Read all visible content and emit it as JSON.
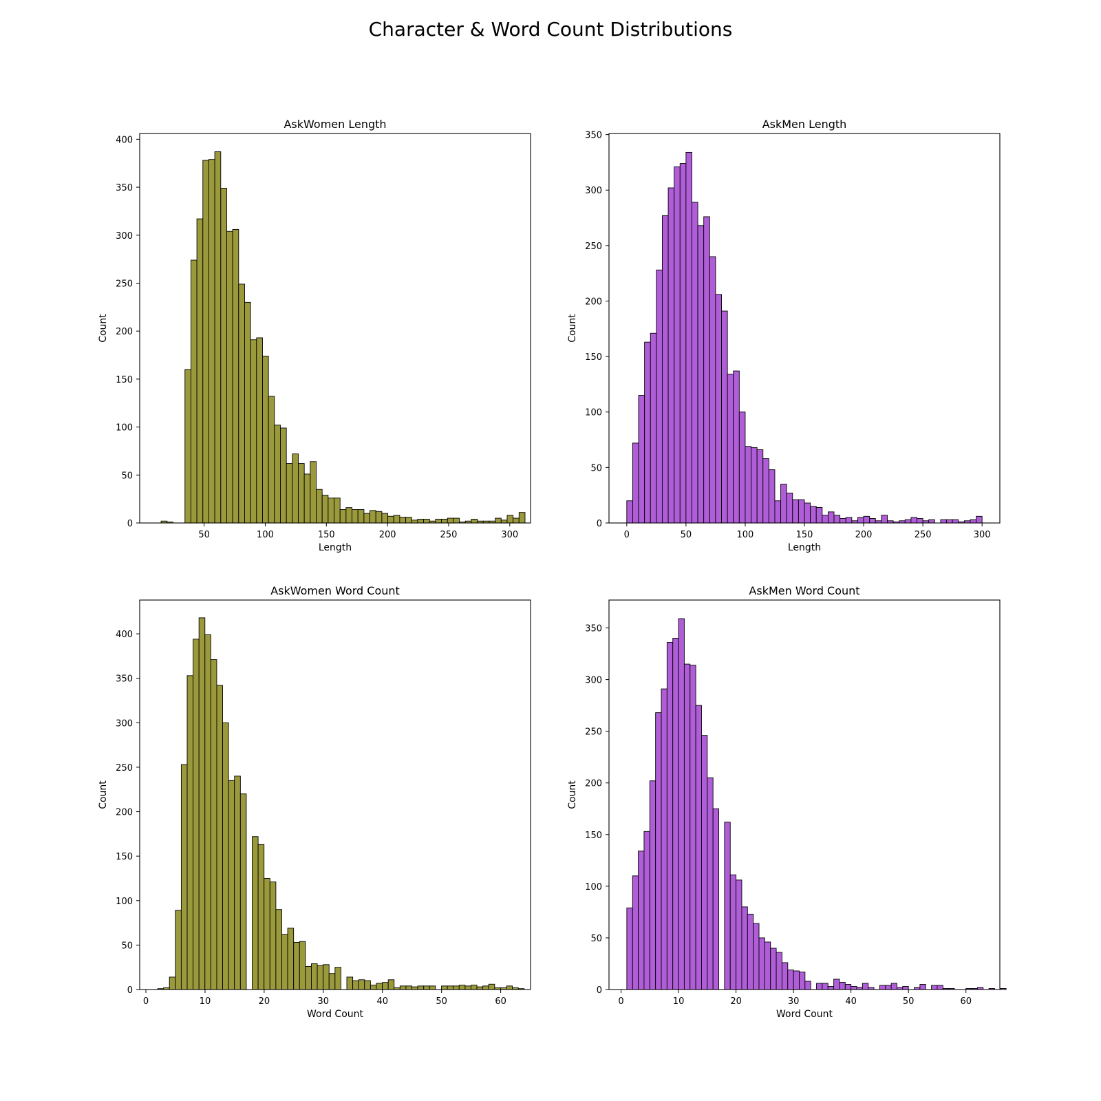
{
  "title": "Character & Word Count Distributions",
  "chart_data": [
    {
      "type": "bar",
      "title": "AskWomen Length",
      "xlabel": "Length",
      "ylabel": "Count",
      "color": "#9a9a3c",
      "xlim": [
        -2.7,
        317.0
      ],
      "ylim": [
        0,
        406
      ],
      "xticks": [
        50,
        100,
        150,
        200,
        250,
        300
      ],
      "yticks": [
        0,
        50,
        100,
        150,
        200,
        250,
        300,
        350,
        400
      ],
      "bin_start": 14.8,
      "bin_width": 4.88,
      "values": [
        2,
        1,
        0,
        0,
        160,
        274,
        317,
        378,
        379,
        387,
        349,
        304,
        306,
        249,
        230,
        191,
        193,
        174,
        132,
        102,
        99,
        62,
        72,
        62,
        51,
        64,
        35,
        29,
        26,
        26,
        14,
        16,
        14,
        14,
        10,
        13,
        12,
        10,
        7,
        8,
        6,
        6,
        3,
        4,
        4,
        2,
        4,
        4,
        5,
        5,
        1,
        2,
        4,
        2,
        2,
        2,
        5,
        3,
        8,
        5,
        11
      ]
    },
    {
      "type": "bar",
      "title": "AskMen Length",
      "xlabel": "Length",
      "ylabel": "Count",
      "color": "#b05ed8",
      "xlim": [
        -15.0,
        315.0
      ],
      "ylim": [
        0,
        351
      ],
      "xticks": [
        0,
        50,
        100,
        150,
        200,
        250,
        300
      ],
      "yticks": [
        0,
        50,
        100,
        150,
        200,
        250,
        300,
        350
      ],
      "bin_start": 0,
      "bin_width": 5.0,
      "values": [
        20,
        72,
        115,
        163,
        171,
        228,
        277,
        302,
        321,
        324,
        334,
        289,
        268,
        276,
        240,
        206,
        191,
        134,
        137,
        100,
        69,
        68,
        66,
        58,
        48,
        20,
        35,
        27,
        21,
        21,
        18,
        15,
        14,
        7,
        10,
        7,
        4,
        5,
        2,
        5,
        6,
        4,
        2,
        7,
        2,
        1,
        2,
        3,
        5,
        4,
        2,
        3,
        0,
        3,
        3,
        3,
        1,
        2,
        3,
        6
      ]
    },
    {
      "type": "bar",
      "title": "AskWomen Word Count",
      "xlabel": "Word Count",
      "ylabel": "Count",
      "color": "#9a9a3c",
      "xlim": [
        -1.05,
        65.05
      ],
      "ylim": [
        0,
        438
      ],
      "xticks": [
        0,
        10,
        20,
        30,
        40,
        50,
        60
      ],
      "yticks": [
        0,
        50,
        100,
        150,
        200,
        250,
        300,
        350,
        400
      ],
      "bin_start": 1.98,
      "bin_width": 1.0,
      "values": [
        1,
        2,
        14,
        89,
        253,
        353,
        394,
        418,
        399,
        371,
        342,
        300,
        235,
        240,
        220,
        0,
        172,
        163,
        125,
        121,
        90,
        62,
        69,
        53,
        54,
        26,
        29,
        27,
        28,
        18,
        25,
        0,
        14,
        10,
        11,
        10,
        5,
        7,
        8,
        11,
        2,
        4,
        4,
        3,
        4,
        4,
        4,
        0,
        4,
        4,
        4,
        5,
        4,
        5,
        3,
        4,
        6,
        2,
        2,
        4,
        2,
        1
      ]
    },
    {
      "type": "bar",
      "title": "AskMen Word Count",
      "xlabel": "Word Count",
      "ylabel": "Count",
      "color": "#b05ed8",
      "xlim": [
        -2.1,
        65.9
      ],
      "ylim": [
        0,
        377
      ],
      "xticks": [
        0,
        10,
        20,
        30,
        40,
        50,
        60
      ],
      "yticks": [
        0,
        50,
        100,
        150,
        200,
        250,
        300,
        350
      ],
      "bin_start": 1.0,
      "bin_width": 1.0,
      "values": [
        79,
        110,
        134,
        153,
        202,
        268,
        291,
        336,
        340,
        359,
        315,
        314,
        275,
        246,
        205,
        175,
        0,
        162,
        111,
        106,
        80,
        73,
        64,
        50,
        46,
        40,
        36,
        26,
        19,
        18,
        17,
        8,
        0,
        6,
        6,
        3,
        10,
        7,
        5,
        3,
        2,
        6,
        2,
        0,
        4,
        4,
        6,
        2,
        3,
        0,
        2,
        5,
        0,
        4,
        4,
        1,
        1,
        0,
        0,
        1,
        1,
        2,
        0,
        1,
        0,
        1
      ]
    }
  ]
}
